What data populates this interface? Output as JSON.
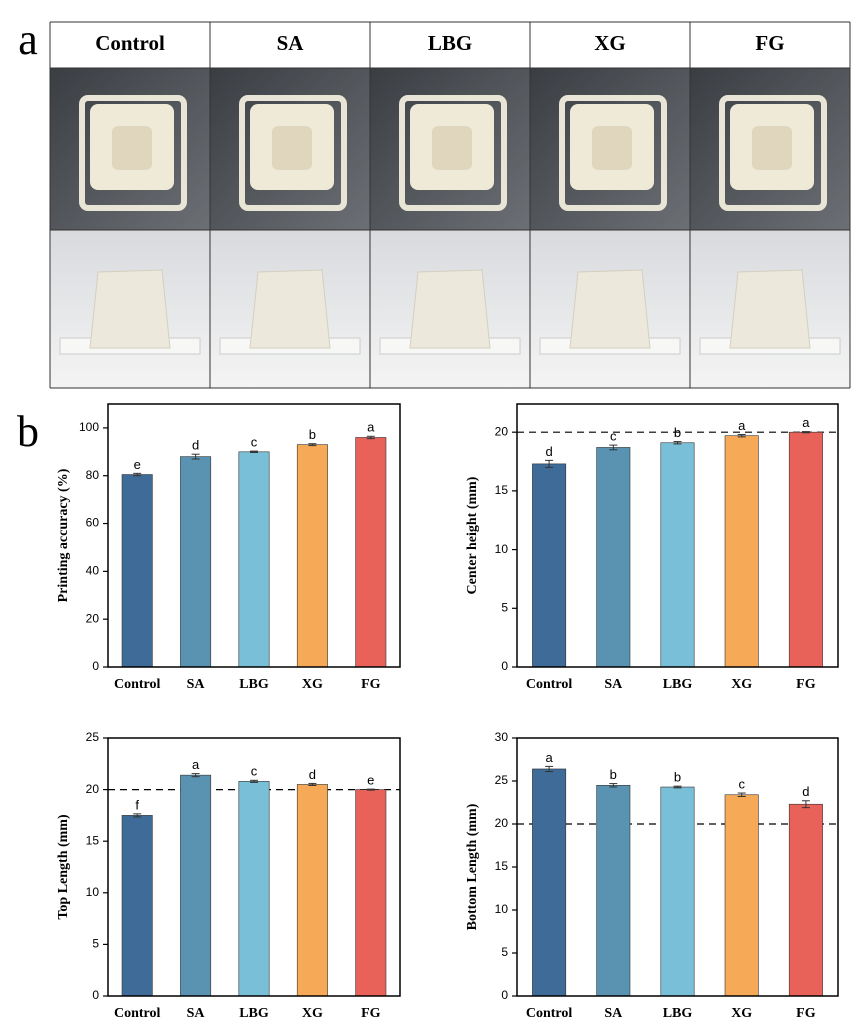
{
  "panel_a": {
    "label": "a",
    "columns": [
      "Control",
      "SA",
      "LBG",
      "XG",
      "FG"
    ]
  },
  "panel_b_label": "b",
  "chart_data": [
    {
      "type": "bar",
      "y_label": "Printing accuracy (%)",
      "categories": [
        "Control",
        "SA",
        "LBG",
        "XG",
        "FG"
      ],
      "values": [
        80.5,
        88,
        90,
        93,
        96
      ],
      "errors": [
        0.5,
        1,
        0.3,
        0.4,
        0.5
      ],
      "annotations": [
        "e",
        "d",
        "c",
        "b",
        "a"
      ],
      "colors": [
        "#3e6b97",
        "#5a93b2",
        "#79bfd8",
        "#f6a957",
        "#e8625a"
      ],
      "ylim": [
        0,
        110
      ],
      "yticks": [
        0,
        20,
        40,
        60,
        80,
        100
      ]
    },
    {
      "type": "bar",
      "y_label": "Center height (mm)",
      "categories": [
        "Control",
        "SA",
        "LBG",
        "XG",
        "FG"
      ],
      "values": [
        17.3,
        18.7,
        19.1,
        19.7,
        20.0
      ],
      "errors": [
        0.3,
        0.2,
        0.1,
        0.1,
        0.05
      ],
      "annotations": [
        "d",
        "c",
        "b",
        "a",
        "a"
      ],
      "colors": [
        "#3e6b97",
        "#5a93b2",
        "#79bfd8",
        "#f6a957",
        "#e8625a"
      ],
      "ylim": [
        0,
        22.4
      ],
      "yticks": [
        0,
        5,
        10,
        15,
        20
      ],
      "reference_line": 20
    },
    {
      "type": "bar",
      "y_label": "Top Length (mm)",
      "categories": [
        "Control",
        "SA",
        "LBG",
        "XG",
        "FG"
      ],
      "values": [
        17.5,
        21.4,
        20.8,
        20.5,
        20.0
      ],
      "errors": [
        0.15,
        0.15,
        0.1,
        0.1,
        0.05
      ],
      "annotations": [
        "f",
        "a",
        "c",
        "d",
        "e"
      ],
      "colors": [
        "#3e6b97",
        "#5a93b2",
        "#79bfd8",
        "#f6a957",
        "#e8625a"
      ],
      "ylim": [
        0,
        25
      ],
      "yticks": [
        0,
        5,
        10,
        15,
        20,
        25
      ],
      "reference_line": 20
    },
    {
      "type": "bar",
      "y_label": "Bottom Length (mm)",
      "categories": [
        "Control",
        "SA",
        "LBG",
        "XG",
        "FG"
      ],
      "values": [
        26.4,
        24.5,
        24.3,
        23.4,
        22.3
      ],
      "errors": [
        0.3,
        0.2,
        0.1,
        0.2,
        0.4
      ],
      "annotations": [
        "a",
        "b",
        "b",
        "c",
        "d"
      ],
      "colors": [
        "#3e6b97",
        "#5a93b2",
        "#79bfd8",
        "#f6a957",
        "#e8625a"
      ],
      "ylim": [
        0,
        30
      ],
      "yticks": [
        0,
        5,
        10,
        15,
        20,
        25,
        30
      ],
      "reference_line": 20
    }
  ]
}
